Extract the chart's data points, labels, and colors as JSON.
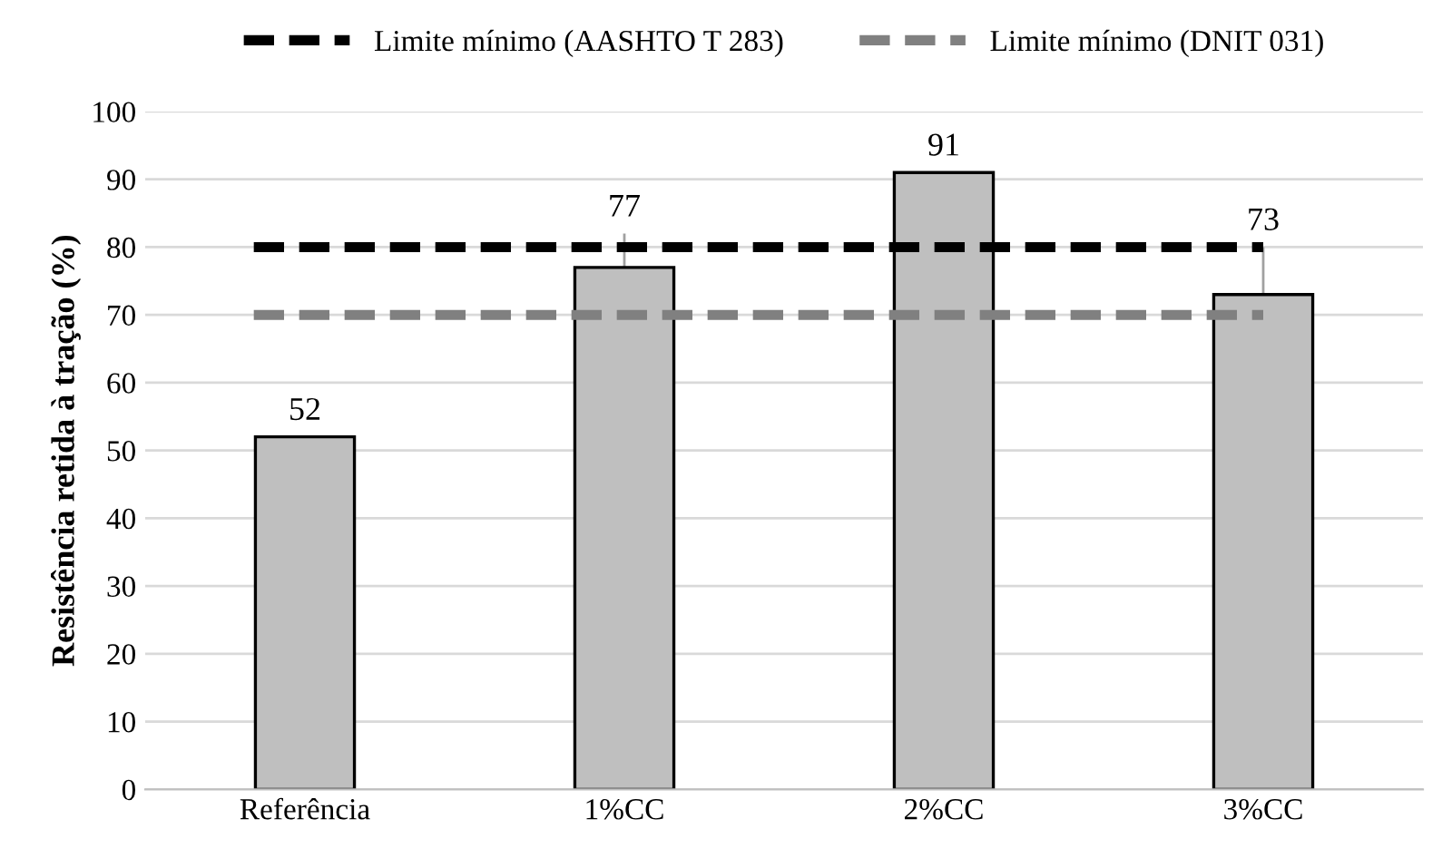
{
  "chart_data": {
    "type": "bar",
    "ylabel": "Resistência retida à tração (%)",
    "categories": [
      "Referência",
      "1%CC",
      "2%CC",
      "3%CC"
    ],
    "values": [
      52,
      77,
      91,
      73
    ],
    "color": "#bfbfbf",
    "data_labels": true,
    "errors": [
      null,
      [
        77,
        82
      ],
      null,
      [
        73,
        80
      ]
    ],
    "ylim": [
      0,
      100
    ],
    "yticks": [
      0,
      10,
      20,
      30,
      40,
      50,
      60,
      70,
      80,
      90,
      100
    ],
    "grid": "y",
    "ref_lines": [
      {
        "axis": "y",
        "value": 80,
        "label": "Limite mínimo (AASHTO T 283)",
        "color": "#000000",
        "line_style": "dashed"
      },
      {
        "axis": "y",
        "value": 70,
        "label": "Limite mínimo (DNIT 031)",
        "color": "#808080",
        "line_style": "dashed"
      }
    ],
    "legend": "top"
  }
}
